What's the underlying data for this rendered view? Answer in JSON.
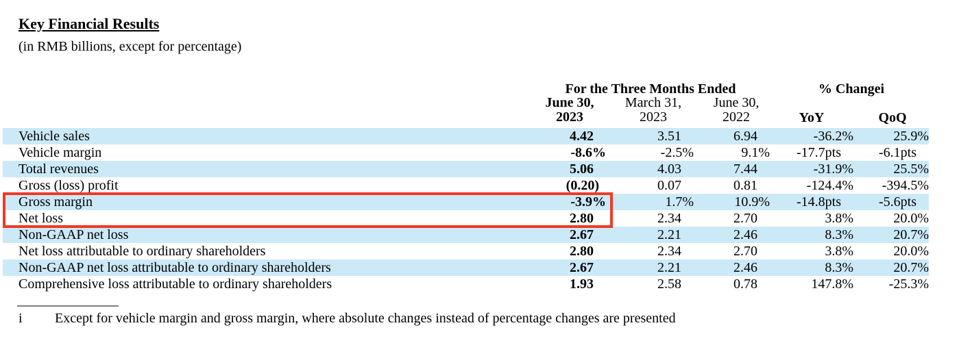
{
  "title": "Key Financial Results",
  "subtitle": "(in RMB billions, except for percentage)",
  "table": {
    "group_headers": {
      "months_ended": "For the Three Months Ended",
      "pct_change": "% Change",
      "pct_change_marker": "i"
    },
    "columns": [
      {
        "id": "jun-30-2023",
        "line1": "June 30,",
        "line2": "2023"
      },
      {
        "id": "mar-31-2023",
        "line1": "March 31,",
        "line2": "2023"
      },
      {
        "id": "jun-30-2022",
        "line1": "June 30,",
        "line2": "2022"
      },
      {
        "id": "yoy",
        "label": "YoY"
      },
      {
        "id": "qoq",
        "label": "QoQ"
      }
    ],
    "rows": [
      {
        "label": "Vehicle sales",
        "values": [
          "4.42",
          "3.51",
          "6.94",
          "-36.2%",
          "25.9%"
        ]
      },
      {
        "label": "Vehicle margin",
        "values": [
          "-8.6%",
          "-2.5%",
          "9.1%",
          "-17.7pts",
          "-6.1pts"
        ]
      },
      {
        "label": "Total revenues",
        "values": [
          "5.06",
          "4.03",
          "7.44",
          "-31.9%",
          "25.5%"
        ]
      },
      {
        "label": "Gross (loss) profit",
        "values": [
          "(0.20)",
          "0.07",
          "0.81",
          "-124.4%",
          "-394.5%"
        ]
      },
      {
        "label": "Gross margin",
        "values": [
          "-3.9%",
          "1.7%",
          "10.9%",
          "-14.8pts",
          "-5.6pts"
        ]
      },
      {
        "label": "Net loss",
        "values": [
          "2.80",
          "2.34",
          "2.70",
          "3.8%",
          "20.0%"
        ]
      },
      {
        "label": "Non-GAAP net loss",
        "values": [
          "2.67",
          "2.21",
          "2.46",
          "8.3%",
          "20.7%"
        ]
      },
      {
        "label": "Net loss attributable to ordinary shareholders",
        "values": [
          "2.80",
          "2.34",
          "2.70",
          "3.8%",
          "20.0%"
        ]
      },
      {
        "label": "Non-GAAP net loss attributable to ordinary shareholders",
        "values": [
          "2.67",
          "2.21",
          "2.46",
          "8.3%",
          "20.7%"
        ]
      },
      {
        "label": "Comprehensive loss attributable to ordinary shareholders",
        "values": [
          "1.93",
          "2.58",
          "0.78",
          "147.8%",
          "-25.3%"
        ]
      }
    ],
    "highlight": {
      "rows": [
        "Gross margin",
        "Net loss"
      ],
      "columns": [
        "label",
        "June 30, 2023"
      ]
    }
  },
  "footnote": {
    "marker": "i",
    "text": "Except for vehicle margin and gross margin, where absolute changes instead of percentage changes are presented"
  },
  "colors": {
    "row_stripe": "#cce9f8",
    "highlight_border": "#ee3a26",
    "text": "#000000"
  }
}
